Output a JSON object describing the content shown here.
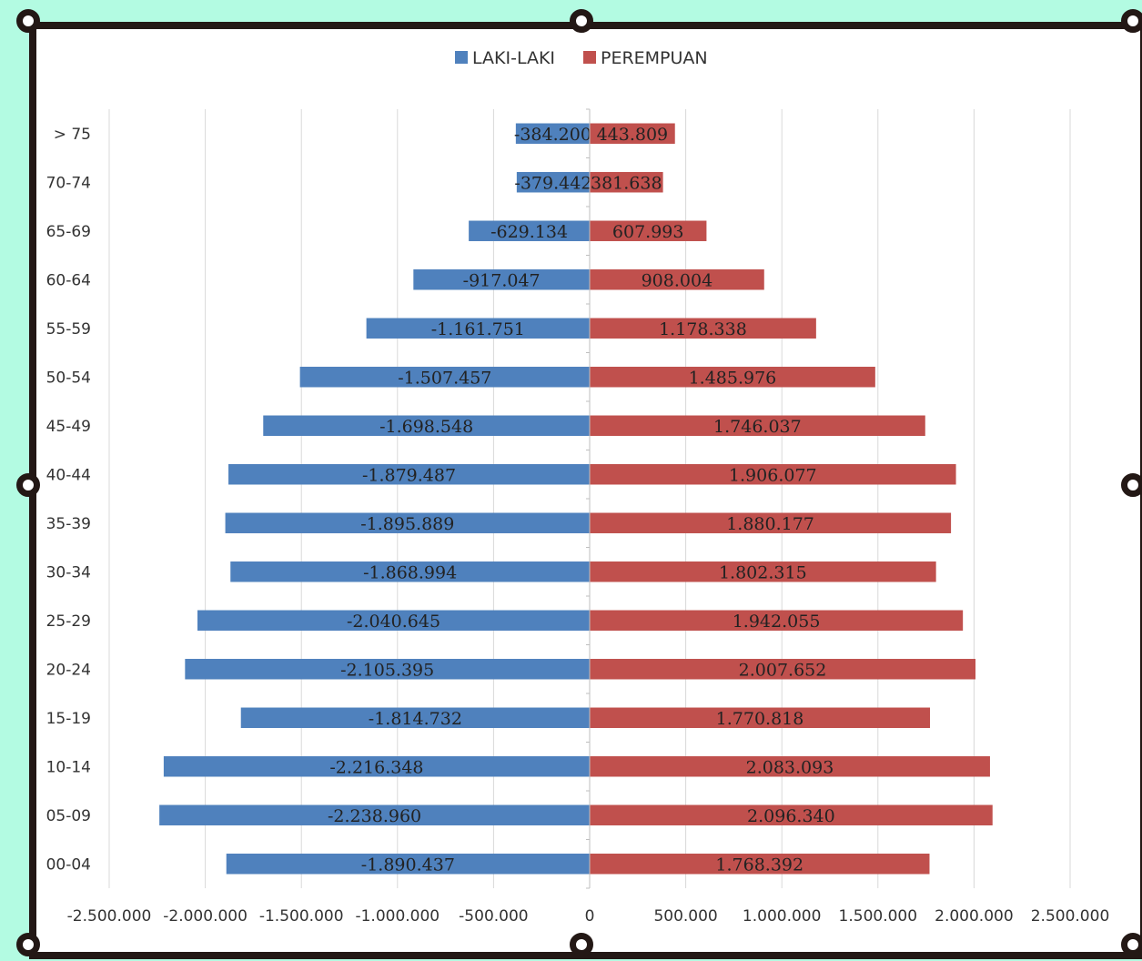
{
  "chart_data": {
    "type": "bar",
    "orientation": "horizontal",
    "legend_position": "top",
    "grid": true,
    "xlim": [
      -2500000,
      2500000
    ],
    "x_ticks": [
      -2500000,
      -2000000,
      -1500000,
      -1000000,
      -500000,
      0,
      500000,
      1000000,
      1500000,
      2000000,
      2500000
    ],
    "x_tick_labels": [
      "-2.500.000",
      "-2.000.000",
      "-1.500.000",
      "-1.000.000",
      "-500.000",
      "0",
      "500.000",
      "1.000.000",
      "1.500.000",
      "2.000.000",
      "2.500.000"
    ],
    "categories": [
      "> 75",
      "70-74",
      "65-69",
      "60-64",
      "55-59",
      "50-54",
      "45-49",
      "40-44",
      "35-39",
      "30-34",
      "25-29",
      "20-24",
      "15-19",
      "10-14",
      "05-09",
      "00-04"
    ],
    "series": [
      {
        "name": "LAKI-LAKI",
        "color": "#4f81bd",
        "values": [
          -384200,
          -379442,
          -629134,
          -917047,
          -1161751,
          -1507457,
          -1698548,
          -1879487,
          -1895889,
          -1868994,
          -2040645,
          -2105395,
          -1814732,
          -2216348,
          -2238960,
          -1890437
        ],
        "labels": [
          "-384.200",
          "-379.442",
          "-629.134",
          "-917.047",
          "-1.161.751",
          "-1.507.457",
          "-1.698.548",
          "-1.879.487",
          "-1.895.889",
          "-1.868.994",
          "-2.040.645",
          "-2.105.395",
          "-1.814.732",
          "-2.216.348",
          "-2.238.960",
          "-1.890.437"
        ]
      },
      {
        "name": "PEREMPUAN",
        "color": "#c0504d",
        "values": [
          443809,
          381638,
          607993,
          908004,
          1178338,
          1485976,
          1746037,
          1906077,
          1880177,
          1802315,
          1942055,
          2007652,
          1770818,
          2083093,
          2096340,
          1768392
        ],
        "labels": [
          "443.809",
          "381.638",
          "607.993",
          "908.004",
          "1.178.338",
          "1.485.976",
          "1.746.037",
          "1.906.077",
          "1.880.177",
          "1.802.315",
          "1.942.055",
          "2.007.652",
          "1.770.818",
          "2.083.093",
          "2.096.340",
          "1.768.392"
        ]
      }
    ]
  }
}
